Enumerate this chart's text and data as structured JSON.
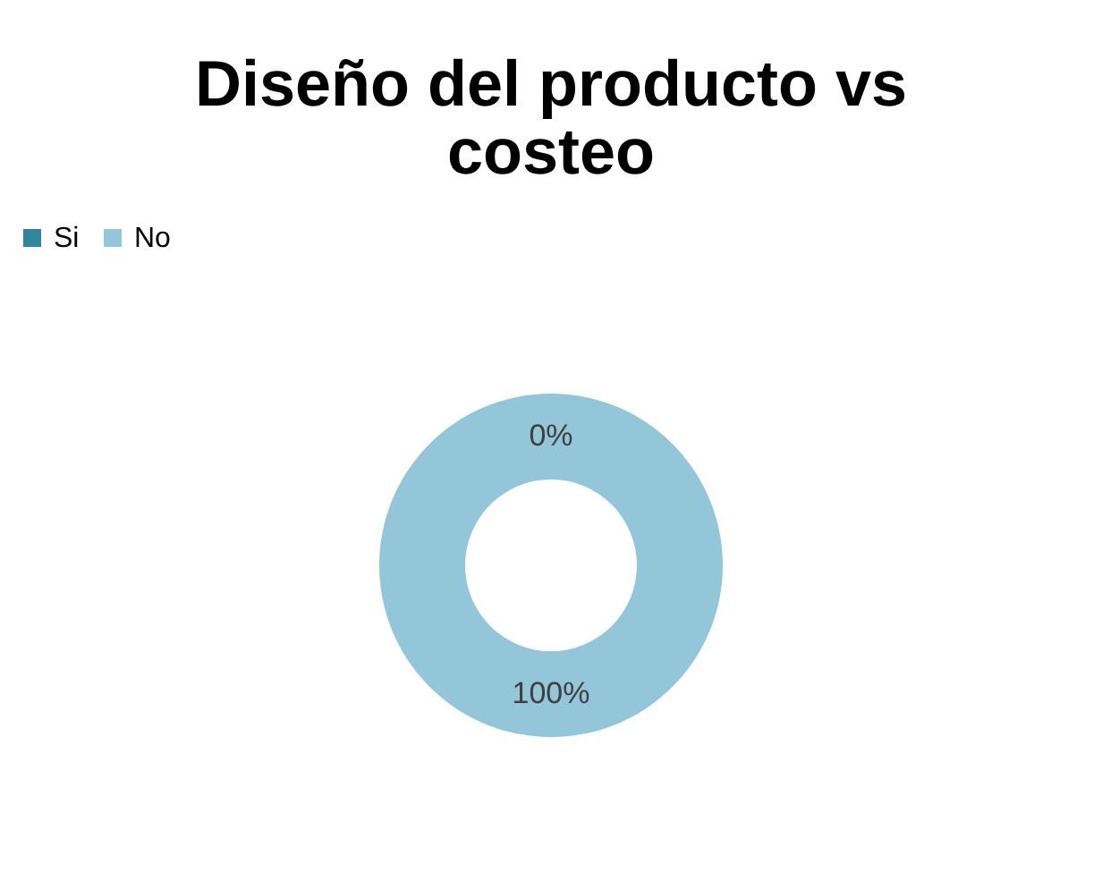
{
  "chart_data": {
    "type": "donut",
    "title": "Diseño del producto vs costeo",
    "categories": [
      "Si",
      "No"
    ],
    "values": [
      0,
      100
    ],
    "colors": [
      "#31859c",
      "#93c6d8"
    ],
    "value_labels": [
      "0%",
      "100%"
    ],
    "legend": "top"
  }
}
